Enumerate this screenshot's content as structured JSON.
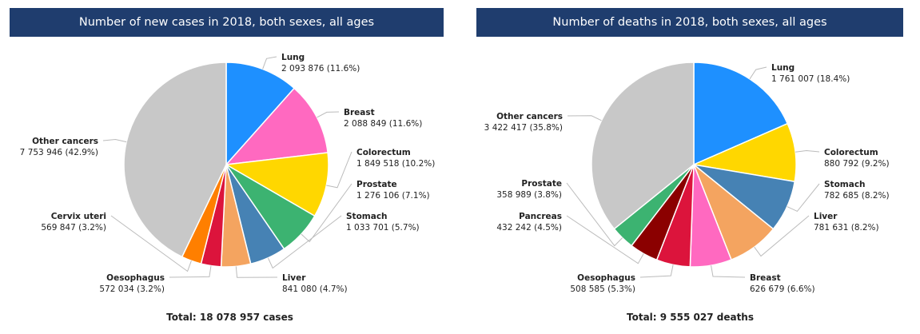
{
  "colors": {
    "banner": "#1f3d6e",
    "leader": "#bbbbbb",
    "Lung": "#1e90ff",
    "Breast": "#ff69c0",
    "Colorectum": "#ffd700",
    "Prostate": "#3cb371",
    "Stomach": "#4682b4",
    "Liver": "#f4a460",
    "Oesophagus": "#dc143c",
    "Cervix uteri": "#ff7f00",
    "Pancreas": "#8b0000",
    "Other cancers": "#c8c8c8"
  },
  "chart_data": [
    {
      "type": "pie",
      "title": "Number of new cases in 2018, both sexes, all ages",
      "total_label": "Total: 18 078 957 cases",
      "slices": [
        {
          "name": "Lung",
          "value": 2093876,
          "value_label": "2 093 876 (11.6%)"
        },
        {
          "name": "Breast",
          "value": 2088849,
          "value_label": "2 088 849 (11.6%)"
        },
        {
          "name": "Colorectum",
          "value": 1849518,
          "value_label": "1 849 518 (10.2%)"
        },
        {
          "name": "Prostate",
          "value": 1276106,
          "value_label": "1 276 106 (7.1%)"
        },
        {
          "name": "Stomach",
          "value": 1033701,
          "value_label": "1 033 701 (5.7%)"
        },
        {
          "name": "Liver",
          "value": 841080,
          "value_label": "841 080 (4.7%)"
        },
        {
          "name": "Oesophagus",
          "value": 572034,
          "value_label": "572 034 (3.2%)"
        },
        {
          "name": "Cervix uteri",
          "value": 569847,
          "value_label": "569 847 (3.2%)"
        },
        {
          "name": "Other cancers",
          "value": 7753946,
          "value_label": "7 753 946 (42.9%)"
        }
      ]
    },
    {
      "type": "pie",
      "title": "Number of deaths in 2018, both sexes, all ages",
      "total_label": "Total: 9 555 027 deaths",
      "slices": [
        {
          "name": "Lung",
          "value": 1761007,
          "value_label": "1 761 007 (18.4%)"
        },
        {
          "name": "Colorectum",
          "value": 880792,
          "value_label": "880 792 (9.2%)"
        },
        {
          "name": "Stomach",
          "value": 782685,
          "value_label": "782 685 (8.2%)"
        },
        {
          "name": "Liver",
          "value": 781631,
          "value_label": "781 631 (8.2%)"
        },
        {
          "name": "Breast",
          "value": 626679,
          "value_label": "626 679 (6.6%)"
        },
        {
          "name": "Oesophagus",
          "value": 508585,
          "value_label": "508 585 (5.3%)"
        },
        {
          "name": "Pancreas",
          "value": 432242,
          "value_label": "432 242 (4.5%)"
        },
        {
          "name": "Prostate",
          "value": 358989,
          "value_label": "358 989 (3.8%)"
        },
        {
          "name": "Other cancers",
          "value": 3422417,
          "value_label": "3 422 417 (35.8%)"
        }
      ]
    }
  ]
}
